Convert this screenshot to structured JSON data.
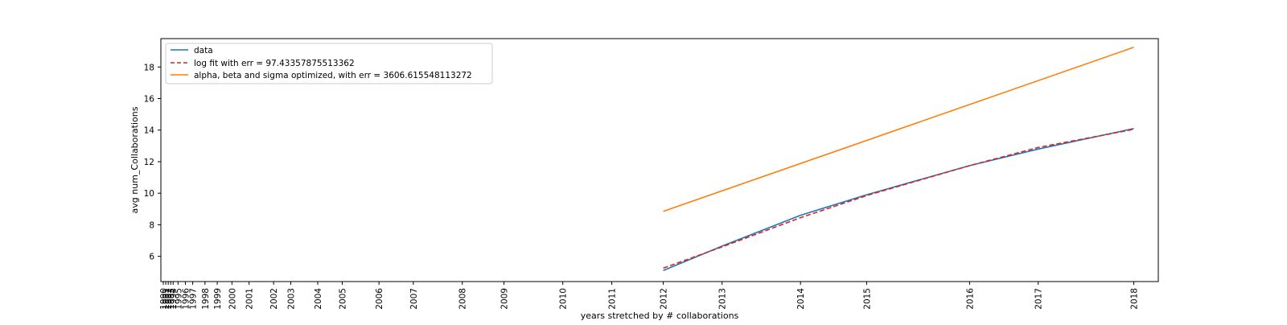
{
  "chart_data": {
    "type": "line",
    "title": "",
    "xlabel": "years stretched by # collaborations",
    "ylabel": "avg num_Collaborations",
    "ylim": [
      4.4,
      19.8
    ],
    "yticks": [
      6,
      8,
      10,
      12,
      14,
      16,
      18
    ],
    "grid": false,
    "legend_position": "top-left",
    "x_axis_note": "x positions are stretched; each year label sits at its cumulative stretched coordinate",
    "x_ticks": [
      {
        "label": "1990",
        "x": 0.0
      },
      {
        "label": "1991",
        "x": 0.05
      },
      {
        "label": "1992",
        "x": 0.1
      },
      {
        "label": "1993",
        "x": 0.15
      },
      {
        "label": "1994",
        "x": 0.2
      },
      {
        "label": "1995",
        "x": 0.3
      },
      {
        "label": "1996",
        "x": 0.45
      },
      {
        "label": "1997",
        "x": 0.6
      },
      {
        "label": "1998",
        "x": 0.85
      },
      {
        "label": "1999",
        "x": 1.1
      },
      {
        "label": "2000",
        "x": 1.4
      },
      {
        "label": "2001",
        "x": 1.75
      },
      {
        "label": "2002",
        "x": 2.25
      },
      {
        "label": "2003",
        "x": 2.6
      },
      {
        "label": "2004",
        "x": 3.15
      },
      {
        "label": "2005",
        "x": 3.65
      },
      {
        "label": "2006",
        "x": 4.4
      },
      {
        "label": "2007",
        "x": 5.1
      },
      {
        "label": "2008",
        "x": 6.1
      },
      {
        "label": "2009",
        "x": 6.95
      },
      {
        "label": "2010",
        "x": 8.15
      },
      {
        "label": "2011",
        "x": 9.15
      },
      {
        "label": "2012",
        "x": 10.2
      },
      {
        "label": "2013",
        "x": 11.4
      },
      {
        "label": "2014",
        "x": 13.0
      },
      {
        "label": "2015",
        "x": 14.35
      },
      {
        "label": "2016",
        "x": 16.45
      },
      {
        "label": "2017",
        "x": 17.85
      },
      {
        "label": "2018",
        "x": 19.8
      }
    ],
    "xlim": [
      -0.05,
      20.3
    ],
    "series": [
      {
        "name": "data",
        "color": "#1f77b4",
        "style": "solid",
        "x": [
          10.2,
          11.4,
          13.0,
          14.35,
          16.45,
          17.85,
          19.8
        ],
        "y": [
          5.1,
          6.65,
          8.6,
          9.9,
          11.75,
          12.8,
          14.1
        ]
      },
      {
        "name": "log fit with err = 97.43357875513362",
        "color": "#d62728",
        "style": "dashed",
        "x": [
          10.2,
          11.4,
          13.0,
          14.35,
          16.45,
          17.85,
          19.8
        ],
        "y": [
          5.25,
          6.6,
          8.45,
          9.85,
          11.75,
          12.9,
          14.05
        ]
      },
      {
        "name": "alpha, beta and sigma optimized, with err = 3606.615548113272",
        "color": "#ff7f0e",
        "style": "solid",
        "x": [
          10.2,
          19.8
        ],
        "y": [
          8.85,
          19.25
        ]
      }
    ]
  }
}
